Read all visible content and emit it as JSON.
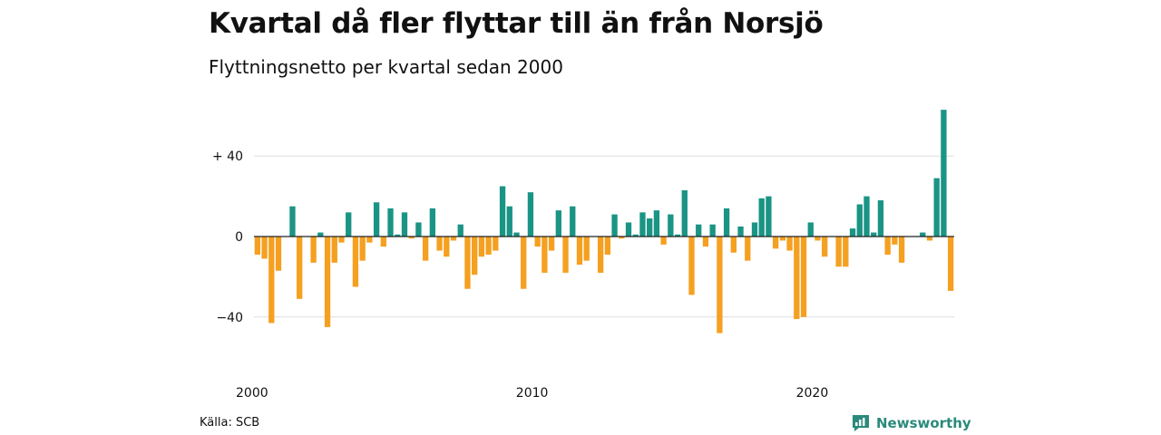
{
  "title": "Kvartal då fler flyttar till än från Norsjö",
  "subtitle": "Flyttningsnetto per kvartal sedan 2000",
  "source": "Källa: SCB",
  "brand": "Newsworthy",
  "colors": {
    "positive": "#1a9485",
    "negative": "#f5a020",
    "grid": "#dddddd",
    "zero": "#222222",
    "brand": "#2a8a7c"
  },
  "chart_data": {
    "type": "bar",
    "ylim": [
      -60,
      62
    ],
    "yticks": [
      {
        "value": 40,
        "label": "+ 40"
      },
      {
        "value": 0,
        "label": "0"
      },
      {
        "value": -40,
        "label": "−40"
      }
    ],
    "xticks": [
      {
        "year": 2000,
        "label": "2000"
      },
      {
        "year": 2010,
        "label": "2010"
      },
      {
        "year": 2020,
        "label": "2020"
      }
    ],
    "grid": true,
    "series": [
      {
        "values": [
          -9,
          -11,
          -43,
          -17,
          0,
          15,
          -31,
          0,
          -13,
          2,
          -45,
          -13,
          -3,
          12,
          -25,
          -12,
          -3,
          17,
          -5,
          14,
          1,
          12,
          -1,
          7,
          -12,
          14,
          -7,
          -10,
          -2,
          6,
          -26,
          -19,
          -10,
          -9,
          -7,
          25,
          15,
          2,
          -26,
          22,
          -5,
          -18,
          -7,
          13,
          -18,
          15,
          -14,
          -12,
          0,
          -18,
          -9,
          11,
          -1,
          7,
          1,
          12,
          9,
          13,
          -4,
          11,
          1,
          23,
          -29,
          6,
          -5,
          6,
          -48,
          14,
          -8,
          5,
          -12,
          7,
          19,
          20,
          -6,
          -2,
          -7,
          -41,
          -40,
          7,
          -2,
          -10,
          0,
          -15,
          -15,
          4,
          16,
          20,
          2,
          18,
          -9,
          -4,
          -13,
          0,
          0,
          2,
          -2,
          29,
          63,
          -27
        ]
      }
    ]
  }
}
